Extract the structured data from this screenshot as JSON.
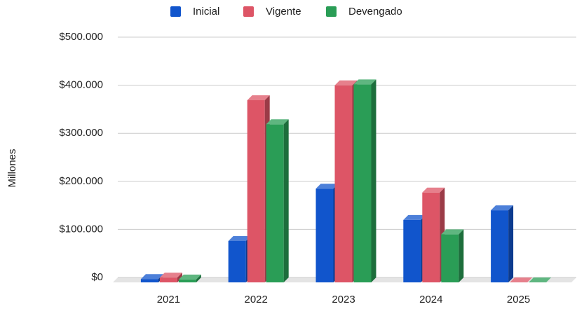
{
  "chart_data": {
    "type": "bar3d",
    "y_label": "Millones",
    "categories": [
      "2021",
      "2022",
      "2023",
      "2024",
      "2025"
    ],
    "series": [
      {
        "name": "Inicial",
        "color": "#1155cc",
        "values": [
          7000,
          86000,
          195000,
          130000,
          150000
        ]
      },
      {
        "name": "Vigente",
        "color": "#dd5566",
        "values": [
          10000,
          379000,
          410000,
          187000,
          0
        ]
      },
      {
        "name": "Devengado",
        "color": "#2a9d56",
        "values": [
          6000,
          329000,
          412000,
          100000,
          0
        ]
      }
    ],
    "ylim": [
      0,
      500000
    ],
    "yticks": [
      {
        "value": 0,
        "label": "$0"
      },
      {
        "value": 100000,
        "label": "$100.000"
      },
      {
        "value": 200000,
        "label": "$200.000"
      },
      {
        "value": 300000,
        "label": "$300.000"
      },
      {
        "value": 400000,
        "label": "$400.000"
      },
      {
        "value": 500000,
        "label": "$500.000"
      }
    ],
    "grid": true,
    "legend": "top"
  }
}
